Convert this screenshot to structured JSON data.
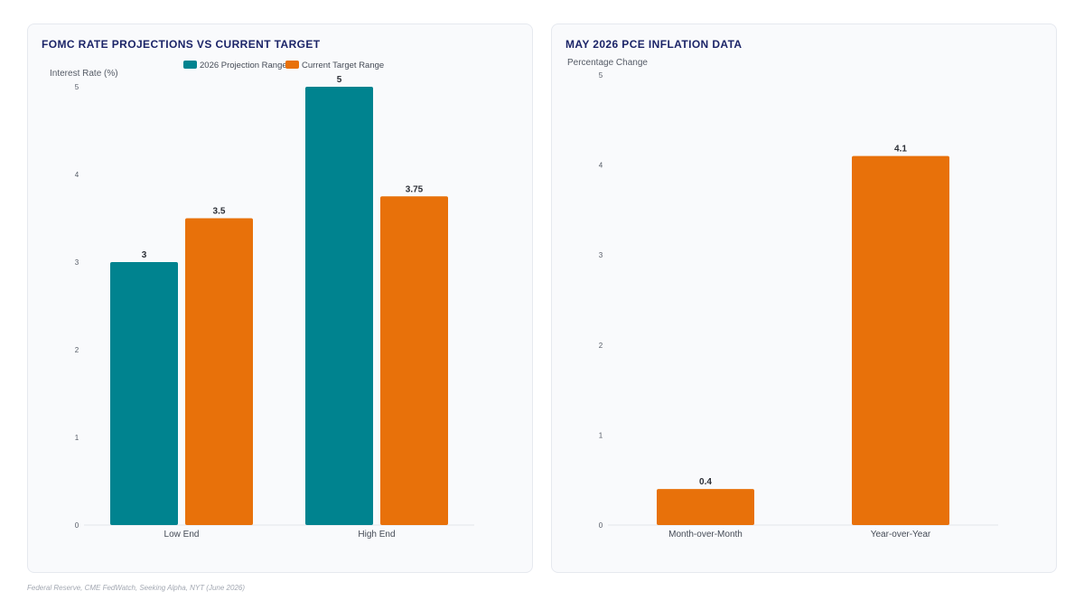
{
  "colors": {
    "teal": "#00838f",
    "orange": "#e8710a",
    "title": "#1b2468",
    "baseline": "#e3e5ea"
  },
  "charts": [
    {
      "title": "FOMC RATE PROJECTIONS VS CURRENT TARGET",
      "chart_data": {
        "type": "bar",
        "title": "FOMC RATE PROJECTIONS VS CURRENT TARGET",
        "ylabel": "Interest Rate (%)",
        "xlabel": "",
        "categories": [
          "Low End",
          "High End"
        ],
        "series": [
          {
            "name": "2026 Projection Range",
            "color": "#00838f",
            "values": [
              3,
              5
            ],
            "labels": [
              "3",
              "5"
            ]
          },
          {
            "name": "Current Target Range",
            "color": "#e8710a",
            "values": [
              3.5,
              3.75
            ],
            "labels": [
              "3.5",
              "3.75"
            ]
          }
        ],
        "ylim": [
          0,
          5
        ],
        "yticks": [
          "0",
          "1",
          "2",
          "3",
          "4",
          "5"
        ],
        "legend": "top-center",
        "grid": false
      }
    },
    {
      "title": "MAY 2026 PCE INFLATION DATA",
      "chart_data": {
        "type": "bar",
        "title": "MAY 2026 PCE INFLATION DATA",
        "ylabel": "Percentage Change",
        "xlabel": "",
        "categories": [
          "Month-over-Month",
          "Year-over-Year"
        ],
        "series": [
          {
            "color": "#e8710a",
            "values": [
              0.4,
              4.1
            ],
            "labels": [
              "0.4",
              "4.1"
            ]
          }
        ],
        "ylim": [
          0,
          5
        ],
        "yticks": [
          "0",
          "1",
          "2",
          "3",
          "4",
          "5"
        ],
        "grid": false
      }
    }
  ],
  "source": "Federal Reserve, CME FedWatch, Seeking Alpha, NYT (June 2026)"
}
